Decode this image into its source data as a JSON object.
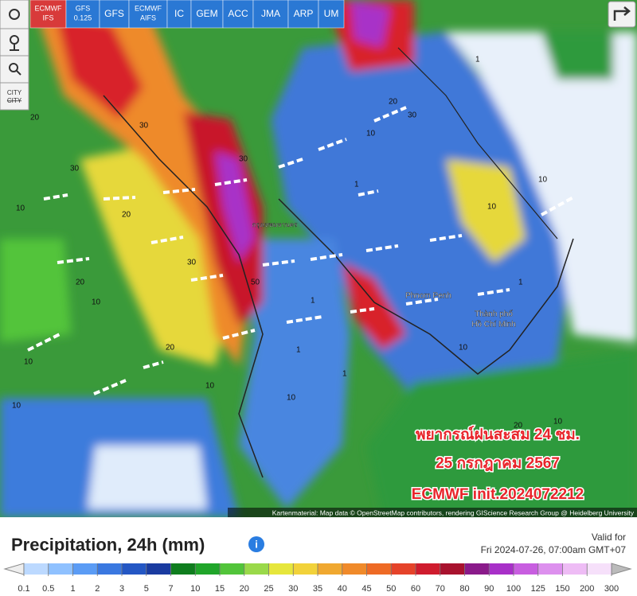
{
  "toolbar": {
    "models": [
      [
        "ECMWF",
        "IFS"
      ],
      [
        "GFS",
        "0.125"
      ],
      [
        "GFS"
      ],
      [
        "ECMWF",
        "AIFS"
      ],
      [
        "IC"
      ],
      [
        "GEM"
      ],
      [
        "ACC"
      ],
      [
        "JMA"
      ],
      [
        "ARP"
      ],
      [
        "UM"
      ]
    ],
    "active_model": 0,
    "city_button": "CITY"
  },
  "map": {
    "places": [
      "กรุงเทพมหานคร",
      "Phnom Penh",
      "Thành phố",
      "Hồ Chí Minh"
    ],
    "contour_labels": [
      "20",
      "30",
      "30",
      "20",
      "10",
      "30",
      "20",
      "10",
      "10",
      "30",
      "50",
      "20",
      "10",
      "10",
      "1",
      "1",
      "20",
      "10",
      "30",
      "1",
      "10",
      "10",
      "1",
      "10",
      "1",
      "20",
      "10",
      "1",
      "10"
    ],
    "overlay": [
      "พยากรณ์ฝนสะสม 24 ชม.",
      "25 กรกฎาคม 2567",
      "ECMWF init.2024072212"
    ],
    "attribution": "Kartenmaterial: Map data © OpenStreetMap contributors, rendering GIScience Research Group @ Heidelberg University"
  },
  "footer": {
    "title": "Precipitation, 24h (mm)",
    "valid_label": "Valid for",
    "valid_time": "Fri 2024-07-26, 07:00am GMT+07"
  },
  "legend": {
    "ticks": [
      0.1,
      0.5,
      1,
      2,
      3,
      5,
      7,
      10,
      15,
      20,
      25,
      30,
      35,
      40,
      45,
      50,
      60,
      70,
      80,
      90,
      100,
      125,
      150,
      200,
      300
    ],
    "colors": [
      "#bcd9ff",
      "#8fc1ff",
      "#5b9cf5",
      "#3a78e0",
      "#2457c4",
      "#1a3ba0",
      "#0f7d1e",
      "#20a52a",
      "#52c43a",
      "#9ad94a",
      "#e6e63c",
      "#f2d23a",
      "#f0a830",
      "#f08a2a",
      "#ee6a25",
      "#e5432a",
      "#cf1c2e",
      "#a8122e",
      "#8a1a8a",
      "#a830c8",
      "#c85ee0",
      "#dd90ee",
      "#eebcf5",
      "#f6e0fa"
    ]
  }
}
